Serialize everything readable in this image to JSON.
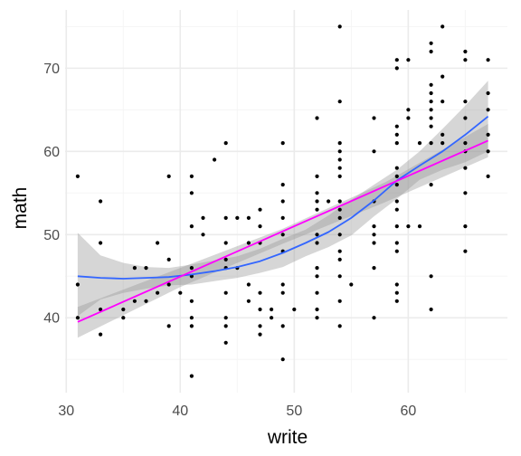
{
  "chart_data": {
    "type": "scatter",
    "title": "",
    "xlabel": "write",
    "ylabel": "math",
    "xlim": [
      29.9,
      68.7
    ],
    "ylim": [
      31.0,
      77.0
    ],
    "x_ticks": [
      30,
      40,
      50,
      60
    ],
    "y_ticks": [
      40,
      50,
      60,
      70
    ],
    "grid": true,
    "legend": "none",
    "colors": {
      "points": "#000000",
      "loess_line": "#3366FF",
      "linear_line": "#FF00FF",
      "ribbon": "#999999",
      "grid_major": "#EBEBEB",
      "grid_minor": "#F5F5F5"
    },
    "points": [
      [
        31,
        57
      ],
      [
        31,
        44
      ],
      [
        31,
        40
      ],
      [
        33,
        54
      ],
      [
        33,
        49
      ],
      [
        33,
        41
      ],
      [
        33,
        38
      ],
      [
        35,
        41
      ],
      [
        35,
        40
      ],
      [
        36,
        46
      ],
      [
        36,
        42
      ],
      [
        37,
        46
      ],
      [
        37,
        42
      ],
      [
        38,
        49
      ],
      [
        38,
        43
      ],
      [
        39,
        57
      ],
      [
        39,
        47
      ],
      [
        39,
        44
      ],
      [
        39,
        39
      ],
      [
        40,
        43
      ],
      [
        41,
        57
      ],
      [
        41,
        55
      ],
      [
        41,
        51
      ],
      [
        41,
        46
      ],
      [
        41,
        45
      ],
      [
        41,
        42
      ],
      [
        41,
        40
      ],
      [
        41,
        39
      ],
      [
        41,
        33
      ],
      [
        42,
        52
      ],
      [
        42,
        50
      ],
      [
        43,
        59
      ],
      [
        44,
        61
      ],
      [
        44,
        52
      ],
      [
        44,
        49
      ],
      [
        44,
        47
      ],
      [
        44,
        46
      ],
      [
        44,
        43
      ],
      [
        44,
        40
      ],
      [
        44,
        39
      ],
      [
        44,
        37
      ],
      [
        45,
        52
      ],
      [
        45,
        46
      ],
      [
        46,
        52
      ],
      [
        46,
        49
      ],
      [
        46,
        44
      ],
      [
        46,
        42
      ],
      [
        47,
        53
      ],
      [
        47,
        51
      ],
      [
        47,
        49
      ],
      [
        47,
        43
      ],
      [
        47,
        41
      ],
      [
        47,
        39
      ],
      [
        47,
        38
      ],
      [
        48,
        41
      ],
      [
        48,
        40
      ],
      [
        49,
        61
      ],
      [
        49,
        56
      ],
      [
        49,
        54
      ],
      [
        49,
        52
      ],
      [
        49,
        50
      ],
      [
        49,
        48
      ],
      [
        49,
        44
      ],
      [
        49,
        43
      ],
      [
        49,
        39
      ],
      [
        49,
        35
      ],
      [
        50,
        41
      ],
      [
        52,
        64
      ],
      [
        52,
        57
      ],
      [
        52,
        55
      ],
      [
        52,
        54
      ],
      [
        52,
        53
      ],
      [
        52,
        50
      ],
      [
        52,
        49
      ],
      [
        52,
        46
      ],
      [
        52,
        45
      ],
      [
        52,
        43
      ],
      [
        52,
        41
      ],
      [
        52,
        40
      ],
      [
        53,
        54
      ],
      [
        54,
        75
      ],
      [
        54,
        66
      ],
      [
        54,
        61
      ],
      [
        54,
        60
      ],
      [
        54,
        59
      ],
      [
        54,
        58
      ],
      [
        54,
        57
      ],
      [
        54,
        54
      ],
      [
        54,
        53
      ],
      [
        54,
        52
      ],
      [
        54,
        50
      ],
      [
        54,
        48
      ],
      [
        54,
        47
      ],
      [
        54,
        45
      ],
      [
        54,
        42
      ],
      [
        54,
        39
      ],
      [
        55,
        44
      ],
      [
        57,
        64
      ],
      [
        57,
        60
      ],
      [
        57,
        54
      ],
      [
        57,
        51
      ],
      [
        57,
        50
      ],
      [
        57,
        49
      ],
      [
        57,
        46
      ],
      [
        57,
        40
      ],
      [
        59,
        71
      ],
      [
        59,
        70
      ],
      [
        59,
        63
      ],
      [
        59,
        62
      ],
      [
        59,
        61
      ],
      [
        59,
        58
      ],
      [
        59,
        57
      ],
      [
        59,
        56
      ],
      [
        59,
        54
      ],
      [
        59,
        53
      ],
      [
        59,
        51
      ],
      [
        59,
        49
      ],
      [
        59,
        48
      ],
      [
        59,
        44
      ],
      [
        59,
        43
      ],
      [
        59,
        42
      ],
      [
        60,
        71
      ],
      [
        60,
        65
      ],
      [
        60,
        64
      ],
      [
        60,
        51
      ],
      [
        61,
        61
      ],
      [
        61,
        51
      ],
      [
        62,
        73
      ],
      [
        62,
        72
      ],
      [
        62,
        68
      ],
      [
        62,
        67
      ],
      [
        62,
        66
      ],
      [
        62,
        65
      ],
      [
        62,
        64
      ],
      [
        62,
        63
      ],
      [
        62,
        61
      ],
      [
        62,
        56
      ],
      [
        62,
        45
      ],
      [
        62,
        41
      ],
      [
        63,
        75
      ],
      [
        63,
        69
      ],
      [
        63,
        66
      ],
      [
        63,
        62
      ],
      [
        63,
        61
      ],
      [
        65,
        72
      ],
      [
        65,
        71
      ],
      [
        65,
        66
      ],
      [
        65,
        64
      ],
      [
        65,
        61
      ],
      [
        65,
        60
      ],
      [
        65,
        58
      ],
      [
        65,
        55
      ],
      [
        65,
        51
      ],
      [
        65,
        48
      ],
      [
        67,
        71
      ],
      [
        67,
        67
      ],
      [
        67,
        65
      ],
      [
        67,
        62
      ],
      [
        67,
        60
      ],
      [
        67,
        57
      ]
    ],
    "linear_fit": {
      "x": [
        31,
        67
      ],
      "y": [
        39.5,
        61.3
      ]
    },
    "loess_fit": {
      "x": [
        31,
        33,
        35,
        37,
        39,
        41,
        43,
        45,
        47,
        49,
        51,
        53,
        55,
        57,
        59,
        61,
        63,
        65,
        67
      ],
      "y": [
        45.0,
        44.8,
        44.7,
        44.8,
        44.9,
        45.2,
        45.6,
        46.1,
        46.8,
        47.8,
        49.0,
        50.3,
        52.0,
        54.1,
        56.5,
        58.3,
        60.0,
        62.0,
        64.2
      ],
      "lower": [
        40.2,
        42.2,
        43.0,
        43.5,
        43.9,
        44.0,
        44.4,
        44.8,
        45.4,
        46.1,
        47.4,
        48.5,
        49.9,
        52.2,
        54.3,
        56.6,
        57.8,
        58.7,
        60.0
      ],
      "upper": [
        50.2,
        47.5,
        46.6,
        46.1,
        46.0,
        46.4,
        46.9,
        47.4,
        48.3,
        49.5,
        50.6,
        52.3,
        54.2,
        56.0,
        57.8,
        60.0,
        62.7,
        65.5,
        68.5
      ]
    },
    "linear_ci": {
      "x": [
        31,
        40,
        49,
        58,
        67
      ],
      "lower": [
        37.6,
        43.7,
        48.9,
        53.9,
        59.3
      ],
      "upper": [
        41.3,
        46.0,
        50.7,
        56.3,
        63.3
      ]
    }
  }
}
